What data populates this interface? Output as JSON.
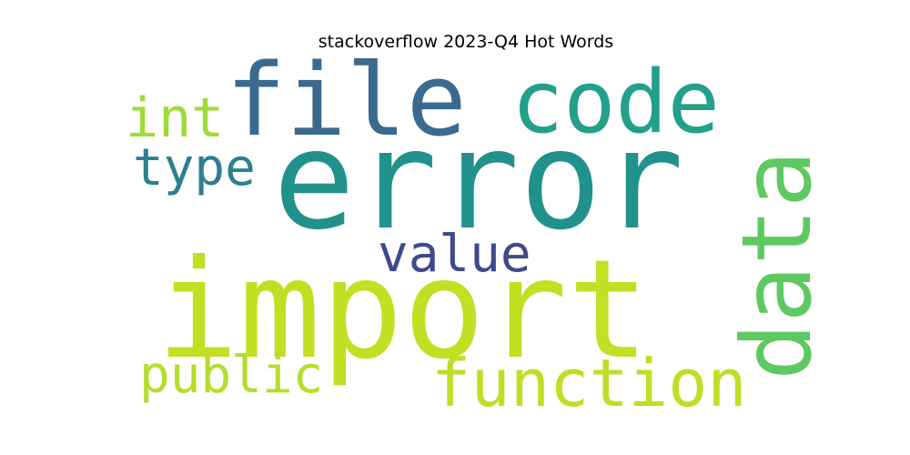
{
  "chart_data": {
    "type": "wordcloud",
    "title": "stackoverflow 2023-Q4 Hot Words",
    "words": [
      {
        "text": "error",
        "color": "#21918c"
      },
      {
        "text": "import",
        "color": "#c2df23"
      },
      {
        "text": "file",
        "color": "#3b6a8f"
      },
      {
        "text": "code",
        "color": "#22a08a"
      },
      {
        "text": "data",
        "color": "#5ec962"
      },
      {
        "text": "function",
        "color": "#bddf26"
      },
      {
        "text": "value",
        "color": "#3e4a89"
      },
      {
        "text": "public",
        "color": "#b5dd2b"
      },
      {
        "text": "int",
        "color": "#a0da39"
      },
      {
        "text": "type",
        "color": "#2c7f8e"
      }
    ]
  }
}
